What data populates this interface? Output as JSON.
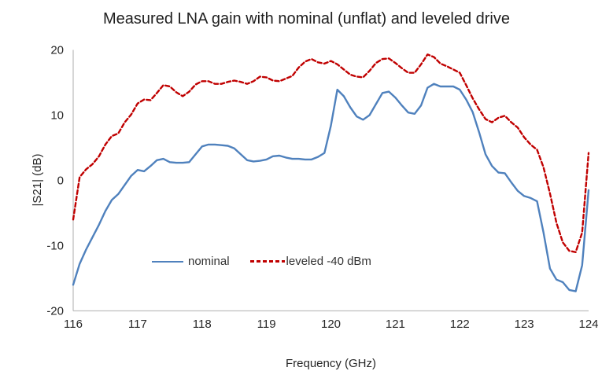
{
  "chart_data": {
    "type": "line",
    "title": "Measured LNA gain with nominal (unflat) and leveled drive",
    "xlabel": "Frequency (GHz)",
    "ylabel": "|S21| (dB)",
    "xlim": [
      116,
      124
    ],
    "ylim": [
      -20,
      20
    ],
    "xticks": [
      116,
      117,
      118,
      119,
      120,
      121,
      122,
      123,
      124
    ],
    "yticks": [
      20,
      10,
      0,
      -10,
      -20
    ],
    "grid": false,
    "legend_position": "inside-bottom-center",
    "axis_color": "#BFBFBF",
    "x_start": 116.0,
    "x_step": 0.1,
    "series": [
      {
        "name": "nominal",
        "color": "#4F81BD",
        "style": "solid",
        "values": [
          -16.0,
          -12.8,
          -10.6,
          -8.7,
          -6.8,
          -4.7,
          -3.0,
          -2.1,
          -0.7,
          0.7,
          1.6,
          1.4,
          2.2,
          3.1,
          3.3,
          2.8,
          2.7,
          2.7,
          2.8,
          4.0,
          5.2,
          5.5,
          5.5,
          5.4,
          5.3,
          4.9,
          4.0,
          3.1,
          2.9,
          3.0,
          3.2,
          3.7,
          3.8,
          3.5,
          3.3,
          3.3,
          3.2,
          3.2,
          3.6,
          4.2,
          8.4,
          13.9,
          12.9,
          11.2,
          9.8,
          9.3,
          10.0,
          11.7,
          13.4,
          13.6,
          12.7,
          11.5,
          10.4,
          10.2,
          11.5,
          14.2,
          14.8,
          14.4,
          14.4,
          14.4,
          13.9,
          12.4,
          10.5,
          7.4,
          4.0,
          2.2,
          1.2,
          1.1,
          -0.3,
          -1.6,
          -2.4,
          -2.7,
          -3.2,
          -8.0,
          -13.5,
          -15.2,
          -15.6,
          -16.8,
          -17.0,
          -13.0,
          -1.5
        ]
      },
      {
        "name": "leveled -40 dBm",
        "color": "#C00000",
        "style": "dashed",
        "values": [
          -6.0,
          0.5,
          1.7,
          2.5,
          3.7,
          5.5,
          6.8,
          7.2,
          8.9,
          10.1,
          11.8,
          12.4,
          12.3,
          13.4,
          14.6,
          14.4,
          13.5,
          12.9,
          13.6,
          14.7,
          15.2,
          15.2,
          14.8,
          14.8,
          15.1,
          15.3,
          15.1,
          14.8,
          15.2,
          15.9,
          15.8,
          15.3,
          15.2,
          15.6,
          16.0,
          17.3,
          18.2,
          18.6,
          18.1,
          17.9,
          18.3,
          17.8,
          17.0,
          16.2,
          15.9,
          15.8,
          16.8,
          18.0,
          18.6,
          18.7,
          18.0,
          17.2,
          16.5,
          16.5,
          17.8,
          19.3,
          18.9,
          17.9,
          17.5,
          17.0,
          16.5,
          14.6,
          12.6,
          10.9,
          9.4,
          8.9,
          9.6,
          9.9,
          8.9,
          8.1,
          6.6,
          5.5,
          4.7,
          2.0,
          -2.0,
          -6.5,
          -9.5,
          -10.8,
          -11.0,
          -8.0,
          4.2
        ]
      }
    ]
  }
}
